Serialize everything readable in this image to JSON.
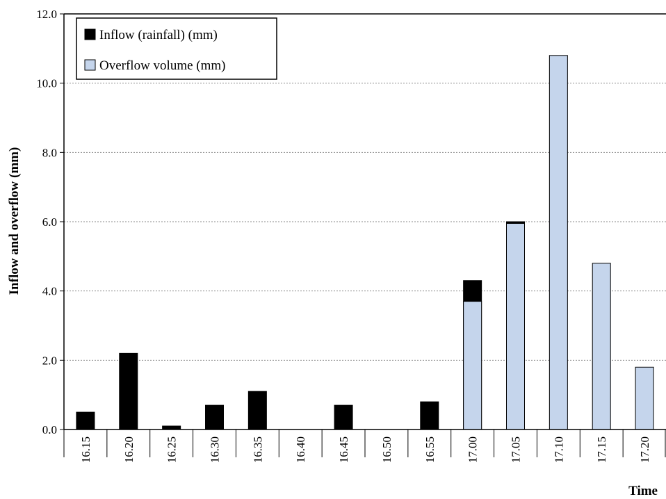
{
  "chart_data": {
    "type": "bar",
    "stacked": true,
    "categories": [
      "16.15",
      "16.20",
      "16.25",
      "16.30",
      "16.35",
      "16.40",
      "16.45",
      "16.50",
      "16.55",
      "17.00",
      "17.05",
      "17.10",
      "17.15",
      "17.20"
    ],
    "series": [
      {
        "name": "Inflow (rainfall) (mm)",
        "color": "#000000",
        "values": [
          0.5,
          2.2,
          0.1,
          0.7,
          1.1,
          0,
          0.7,
          0,
          0.8,
          4.3,
          6.0,
          0,
          0,
          0
        ]
      },
      {
        "name": "Overflow volume (mm)",
        "color": "#c5d5ec",
        "values": [
          0,
          0,
          0,
          0,
          0,
          0,
          0,
          0,
          0,
          3.7,
          5.95,
          10.8,
          4.8,
          1.8
        ]
      }
    ],
    "overlay": true,
    "xlabel": "Time",
    "ylabel": "Inflow and overflow (mm)",
    "ylim": [
      0,
      12
    ],
    "yticks": [
      "0.0",
      "2.0",
      "4.0",
      "6.0",
      "8.0",
      "10.0",
      "12.0"
    ],
    "grid": true,
    "legend": "top-left"
  }
}
